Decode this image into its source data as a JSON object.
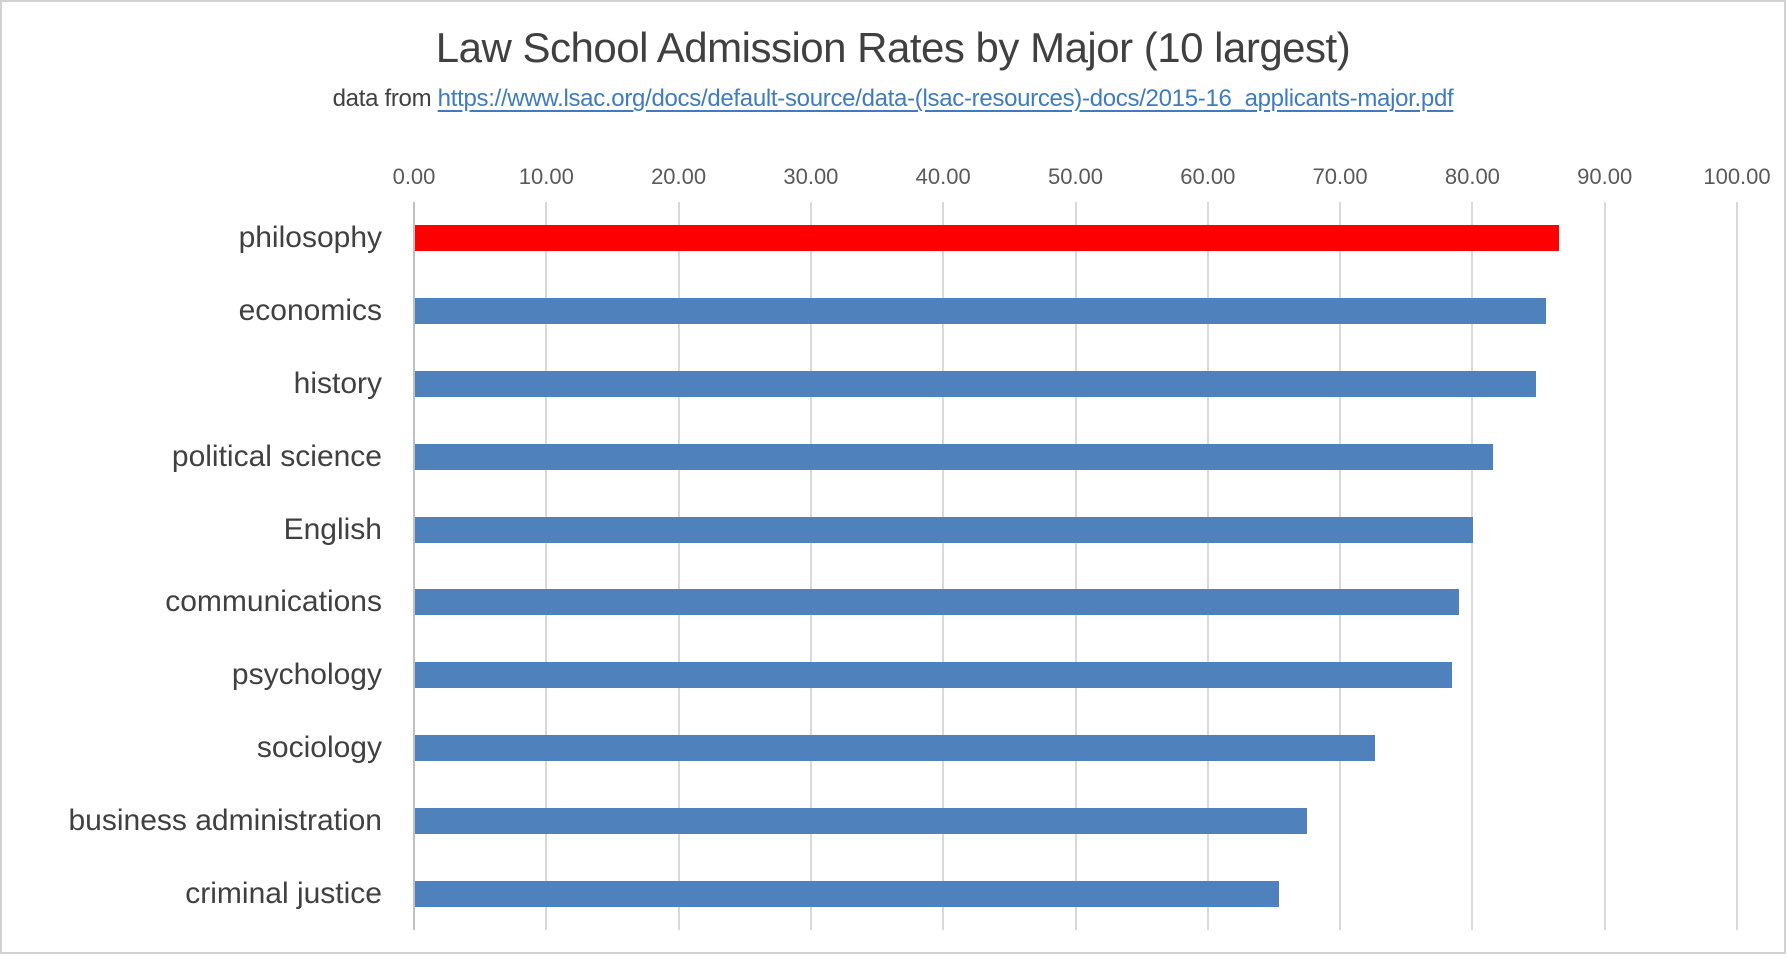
{
  "chart_data": {
    "type": "bar",
    "orientation": "horizontal",
    "title": "Law School Admission Rates by Major (10 largest)",
    "subtitle": {
      "prefix": "data from ",
      "link_text": "https://www.lsac.org/docs/default-source/data-(lsac-resources)-docs/2015-16_applicants-major.pdf"
    },
    "categories": [
      "philosophy",
      "economics",
      "history",
      "political science",
      "English",
      "communications",
      "psychology",
      "sociology",
      "business administration",
      "criminal justice"
    ],
    "values": [
      86.5,
      85.5,
      84.7,
      81.5,
      80.0,
      78.9,
      78.4,
      72.6,
      67.4,
      65.3
    ],
    "highlight_index": 0,
    "xlabel": "",
    "ylabel": "",
    "xlim": [
      0,
      100
    ],
    "x_tick_step": 10,
    "x_tick_labels": [
      "0.00",
      "10.00",
      "20.00",
      "30.00",
      "40.00",
      "50.00",
      "60.00",
      "70.00",
      "80.00",
      "90.00",
      "100.00"
    ],
    "grid": true,
    "legend": "none",
    "colors": {
      "bar_default": "#4F81BD",
      "bar_highlight": "#FF0000",
      "link_blue": "#3E7CBF",
      "text_dark": "#404040",
      "tick_text": "#595959",
      "gridline": "#D9D9D9",
      "axis_line": "#BFBFBF"
    }
  }
}
